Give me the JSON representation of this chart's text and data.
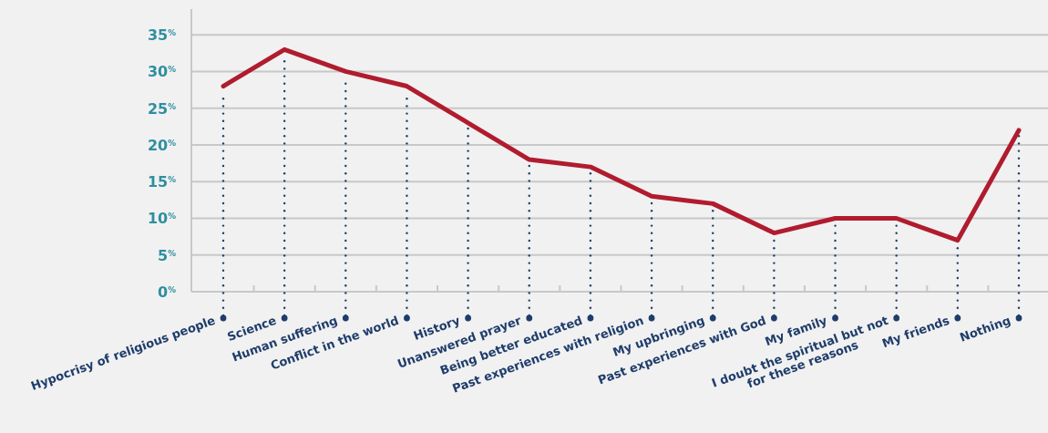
{
  "chart_data": {
    "type": "line",
    "categories": [
      "Hypocrisy of religious people",
      "Science",
      "Human suffering",
      "Conflict in the world",
      "History",
      "Unanswered prayer",
      "Being better educated",
      "Past experiences with religion",
      "My upbringing",
      "Past experiences with God",
      "My family",
      "I doubt the spiritual but not for these reasons",
      "My friends",
      "Nothing"
    ],
    "series": [
      {
        "color": "#b01c2e",
        "values": [
          28,
          33,
          30,
          28,
          23,
          18,
          17,
          13,
          12,
          8,
          10,
          10,
          7,
          22
        ]
      }
    ],
    "ylim": [
      0,
      38.5
    ],
    "yticks": [
      {
        "value": 0,
        "label": "0$^{%}$"
      },
      {
        "value": 5,
        "label": "5$^{%}$"
      },
      {
        "value": 10,
        "label": "10$^{%}$"
      },
      {
        "value": 15,
        "label": "15$^{%}$"
      },
      {
        "value": 20,
        "label": "20$^{%}$"
      },
      {
        "value": 25,
        "label": "25$^{%}$"
      },
      {
        "value": 30,
        "label": "30$^{%}$"
      },
      {
        "value": 35,
        "label": "35$^{%}$"
      }
    ],
    "grid": "y",
    "marker": "none",
    "line_style": "solid"
  }
}
